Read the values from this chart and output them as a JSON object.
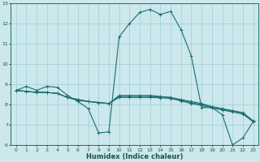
{
  "xlabel": "Humidex (Indice chaleur)",
  "bg_color": "#cce8ec",
  "grid_color": "#9ecdd4",
  "line_color": "#1a7070",
  "xlim": [
    -0.5,
    23.5
  ],
  "ylim": [
    6,
    13
  ],
  "xticks": [
    0,
    1,
    2,
    3,
    4,
    5,
    6,
    7,
    8,
    9,
    10,
    11,
    12,
    13,
    14,
    15,
    16,
    17,
    18,
    19,
    20,
    21,
    22,
    23
  ],
  "yticks": [
    6,
    7,
    8,
    9,
    10,
    11,
    12,
    13
  ],
  "series": [
    [
      8.7,
      8.9,
      8.7,
      8.9,
      8.85,
      8.45,
      8.15,
      7.8,
      6.6,
      6.65,
      11.35,
      12.0,
      12.55,
      12.7,
      12.45,
      12.6,
      11.7,
      10.4,
      7.85,
      7.85,
      7.5,
      6.0,
      6.35,
      7.15
    ],
    [
      8.7,
      8.65,
      8.6,
      8.6,
      8.55,
      8.35,
      8.2,
      8.15,
      8.1,
      8.05,
      8.45,
      8.45,
      8.45,
      8.45,
      8.4,
      8.35,
      8.25,
      8.15,
      8.05,
      7.9,
      7.8,
      7.7,
      7.6,
      7.2
    ],
    [
      8.7,
      8.65,
      8.6,
      8.6,
      8.55,
      8.35,
      8.25,
      8.15,
      8.1,
      8.05,
      8.4,
      8.4,
      8.4,
      8.4,
      8.38,
      8.35,
      8.2,
      8.1,
      8.0,
      7.88,
      7.78,
      7.68,
      7.58,
      7.18
    ],
    [
      8.7,
      8.65,
      8.6,
      8.6,
      8.55,
      8.35,
      8.25,
      8.15,
      8.1,
      8.05,
      8.35,
      8.35,
      8.35,
      8.35,
      8.33,
      8.3,
      8.18,
      8.05,
      7.95,
      7.83,
      7.73,
      7.63,
      7.53,
      7.15
    ]
  ]
}
